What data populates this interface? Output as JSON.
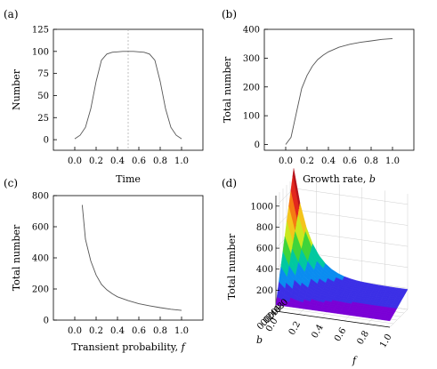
{
  "chart_data": [
    {
      "panel": "(a)",
      "type": "line",
      "xlabel": "Time",
      "ylabel": "Number",
      "xlim": [
        -0.2,
        1.2
      ],
      "ylim": [
        -12,
        125
      ],
      "xticks": [
        "0.0",
        "0.2",
        "0.4",
        "0.6",
        "0.8",
        "1.0"
      ],
      "xtick_values": [
        0,
        0.2,
        0.4,
        0.6,
        0.8,
        1.0
      ],
      "yticks": [
        "0",
        "25",
        "50",
        "75",
        "100",
        "125"
      ],
      "ytick_values": [
        0,
        25,
        50,
        75,
        100,
        125
      ],
      "vline": 0.5,
      "series": [
        {
          "x": [
            0.0,
            0.05,
            0.1,
            0.15,
            0.2,
            0.25,
            0.3,
            0.35,
            0.4,
            0.45,
            0.5,
            0.55,
            0.6,
            0.65,
            0.7,
            0.75,
            0.8,
            0.85,
            0.9,
            0.95,
            1.0
          ],
          "y": [
            1,
            5,
            14,
            35,
            66,
            90,
            97,
            99,
            99.5,
            100,
            100,
            100,
            99.5,
            99,
            97,
            90,
            66,
            35,
            14,
            5,
            1
          ]
        }
      ]
    },
    {
      "panel": "(b)",
      "type": "line",
      "xlabel": "Growth rate, ",
      "xlabel_var": "b",
      "ylabel": "Total number",
      "xlim": [
        -0.2,
        1.2
      ],
      "ylim": [
        -20,
        400
      ],
      "xticks": [
        "0.0",
        "0.2",
        "0.4",
        "0.6",
        "0.8",
        "1.0"
      ],
      "xtick_values": [
        0,
        0.2,
        0.4,
        0.6,
        0.8,
        1.0
      ],
      "yticks": [
        "0",
        "100",
        "200",
        "300",
        "400"
      ],
      "ytick_values": [
        0,
        100,
        200,
        300,
        400
      ],
      "series": [
        {
          "x": [
            0.0,
            0.05,
            0.1,
            0.15,
            0.2,
            0.25,
            0.3,
            0.35,
            0.4,
            0.5,
            0.6,
            0.7,
            0.8,
            0.9,
            1.0
          ],
          "y": [
            0,
            25,
            110,
            195,
            240,
            272,
            295,
            310,
            322,
            338,
            348,
            355,
            360,
            365,
            368
          ]
        }
      ]
    },
    {
      "panel": "(c)",
      "type": "line",
      "xlabel": "Transient probability, ",
      "xlabel_var": "f",
      "ylabel": "Total number",
      "xlim": [
        -0.2,
        1.2
      ],
      "ylim": [
        0,
        800
      ],
      "xticks": [
        "0.0",
        "0.2",
        "0.4",
        "0.6",
        "0.8",
        "1.0"
      ],
      "xtick_values": [
        0,
        0.2,
        0.4,
        0.6,
        0.8,
        1.0
      ],
      "yticks": [
        "0",
        "200",
        "400",
        "600",
        "800"
      ],
      "ytick_values": [
        0,
        200,
        400,
        600,
        800
      ],
      "series": [
        {
          "x": [
            0.07,
            0.1,
            0.15,
            0.2,
            0.25,
            0.3,
            0.35,
            0.4,
            0.5,
            0.6,
            0.7,
            0.8,
            0.9,
            1.0
          ],
          "y": [
            740,
            520,
            380,
            290,
            230,
            195,
            170,
            150,
            125,
            105,
            92,
            80,
            70,
            62
          ]
        }
      ]
    },
    {
      "panel": "(d)",
      "type": "surface",
      "zlabel": "Total number",
      "xlabel_var": "f",
      "ylabel_var": "b",
      "zticks": [
        "200",
        "400",
        "600",
        "800",
        "1000"
      ],
      "ztick_values": [
        200,
        400,
        600,
        800,
        1000
      ],
      "zlim": [
        0,
        1100
      ],
      "b_ticks": [
        "1.0",
        "0.8",
        "0.6",
        "0.4",
        "0.2",
        "0.0"
      ],
      "f_ticks": [
        "0.0",
        "0.2",
        "0.4",
        "0.6",
        "0.8",
        "1.0"
      ],
      "colorscale": [
        "#7a00d6",
        "#3b2fe6",
        "#0a8cf0",
        "#00c8a0",
        "#3ed43a",
        "#c9e81e",
        "#f4c41a",
        "#f57a12",
        "#e3261c",
        "#b5121b"
      ]
    }
  ]
}
